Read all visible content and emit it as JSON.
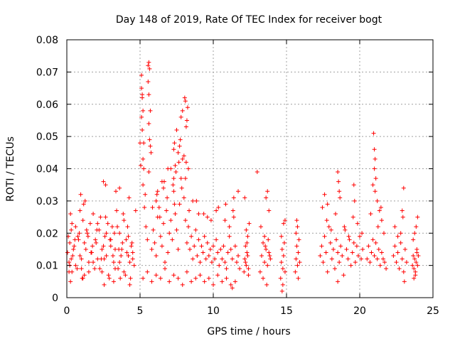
{
  "chart_data": {
    "type": "scatter",
    "title": "Day 148 of 2019, Rate Of TEC Index for receiver bogt",
    "xlabel": "GPS time / hours",
    "ylabel": "ROTI / TECUs",
    "xlim": [
      0,
      25
    ],
    "ylim": [
      0,
      0.08
    ],
    "x_ticks": [
      0,
      5,
      10,
      15,
      20,
      25
    ],
    "x_tick_labels": [
      "0",
      "5",
      "10",
      "15",
      "20",
      "25"
    ],
    "y_ticks": [
      0,
      0.01,
      0.02,
      0.03,
      0.04,
      0.05,
      0.06,
      0.07,
      0.08
    ],
    "y_tick_labels": [
      "0",
      "0.01",
      "0.02",
      "0.03",
      "0.04",
      "0.05",
      "0.06",
      "0.07",
      "0.08"
    ],
    "grid": true,
    "marker": "+",
    "marker_color": "#ff0000",
    "series": [
      {
        "name": "ROTI",
        "x": [
          0.05,
          0.1,
          0.15,
          0.2,
          0.25,
          0.3,
          0.35,
          0.4,
          0.5,
          0.6,
          0.7,
          0.8,
          0.9,
          1.0,
          1.1,
          1.2,
          1.3,
          1.4,
          1.5,
          1.6,
          1.7,
          1.8,
          1.9,
          2.0,
          2.1,
          2.2,
          2.3,
          2.4,
          2.5,
          2.6,
          2.7,
          2.8,
          2.9,
          3.0,
          3.1,
          3.2,
          3.3,
          3.4,
          3.5,
          3.6,
          3.7,
          3.8,
          3.9,
          4.0,
          4.1,
          4.2,
          4.3,
          4.4,
          4.5,
          4.6,
          0.15,
          0.3,
          0.45,
          0.6,
          0.75,
          0.9,
          1.05,
          1.2,
          1.35,
          1.5,
          1.65,
          1.8,
          1.95,
          2.1,
          2.25,
          2.4,
          2.55,
          2.7,
          2.85,
          3.0,
          3.15,
          3.3,
          3.45,
          3.6,
          3.75,
          3.9,
          4.05,
          4.2,
          4.35,
          4.5,
          0.2,
          0.35,
          0.55,
          0.85,
          1.0,
          1.15,
          1.45,
          1.75,
          2.05,
          2.35,
          2.65,
          2.95,
          3.25,
          3.55,
          3.85,
          4.15,
          4.45,
          0.95,
          1.25,
          2.5,
          2.65,
          3.35,
          3.6,
          4.25,
          0.25,
          1.1,
          2.55,
          3.2,
          3.65,
          4.3,
          4.7,
          5.0,
          5.05,
          5.1,
          5.15,
          5.2,
          5.25,
          5.3,
          5.4,
          5.5,
          5.55,
          5.6,
          5.65,
          5.7,
          5.8,
          5.9,
          6.0,
          6.1,
          6.2,
          6.3,
          6.4,
          6.5,
          6.6,
          6.7,
          6.8,
          6.9,
          7.0,
          7.1,
          7.2,
          7.3,
          7.4,
          7.5,
          7.6,
          7.7,
          7.8,
          7.9,
          8.0,
          8.1,
          8.2,
          8.3,
          8.4,
          8.5,
          8.6,
          8.7,
          8.8,
          8.9,
          9.0,
          9.1,
          9.2,
          9.3,
          9.4,
          9.5,
          9.6,
          9.7,
          9.8,
          9.9,
          10.0,
          10.1,
          10.2,
          10.3,
          10.4,
          10.5,
          10.6,
          10.7,
          10.8,
          10.9,
          11.0,
          11.1,
          11.2,
          11.3,
          11.4,
          11.5,
          11.6,
          11.7,
          11.8,
          5.1,
          5.15,
          5.1,
          5.2,
          5.15,
          5.25,
          5.2,
          5.6,
          5.65,
          5.55,
          5.7,
          5.6,
          5.75,
          5.6,
          6.2,
          6.5,
          6.9,
          7.3,
          7.35,
          7.5,
          7.6,
          7.65,
          7.8,
          7.9,
          8.0,
          8.05,
          8.1,
          8.15,
          8.2,
          8.25,
          8.1,
          8.15,
          7.4,
          7.45,
          7.25,
          7.3,
          7.7,
          7.75,
          8.3,
          6.1,
          6.15,
          6.6,
          6.65,
          7.1,
          5.2,
          5.5,
          5.8,
          6.1,
          6.4,
          6.7,
          7.0,
          7.3,
          7.6,
          7.9,
          8.2,
          8.5,
          8.8,
          9.1,
          9.4,
          9.7,
          10.0,
          10.3,
          10.6,
          10.9,
          11.2,
          11.5,
          5.35,
          5.85,
          6.35,
          6.85,
          7.35,
          7.85,
          8.35,
          8.85,
          9.35,
          9.85,
          10.35,
          10.85,
          11.35,
          11.7,
          8.6,
          9.0,
          9.6,
          10.2,
          10.8,
          11.1,
          11.3,
          11.4,
          12.1,
          12.15,
          12.2,
          12.25,
          12.3,
          12.35,
          12.4,
          12.45,
          12.2,
          12.3,
          12.25,
          12.35,
          12.4,
          12.15,
          13.2,
          13.3,
          13.4,
          13.5,
          13.6,
          13.7,
          13.8,
          13.9,
          13.4,
          13.5,
          13.6,
          13.7,
          13.8,
          13.75,
          13.65,
          13.0,
          13.25,
          13.55,
          13.85,
          14.6,
          14.65,
          14.7,
          14.75,
          14.8,
          14.85,
          14.9,
          14.7,
          14.75,
          14.8,
          14.65,
          14.9,
          15.6,
          15.65,
          15.7,
          15.75,
          15.8,
          15.85,
          15.7,
          15.75,
          15.8,
          15.65,
          15.9,
          17.3,
          17.4,
          17.5,
          17.6,
          17.7,
          17.8,
          17.9,
          18.0,
          18.1,
          18.2,
          18.3,
          18.4,
          18.5,
          18.6,
          18.7,
          18.8,
          18.9,
          19.0,
          19.1,
          19.2,
          19.3,
          19.4,
          19.5,
          19.6,
          19.7,
          19.8,
          19.9,
          20.0,
          20.1,
          20.2,
          17.45,
          17.75,
          18.05,
          18.35,
          18.65,
          18.95,
          19.25,
          19.55,
          19.85,
          20.15,
          18.5,
          18.55,
          18.6,
          18.5,
          19.6,
          19.65,
          17.6,
          17.8,
          20.5,
          20.6,
          20.7,
          20.8,
          20.9,
          21.0,
          21.1,
          21.2,
          21.3,
          21.4,
          21.5,
          21.6,
          21.7,
          21.8,
          20.95,
          21.0,
          21.05,
          21.0,
          21.1,
          20.9,
          21.05,
          21.2,
          21.35,
          21.5,
          21.65,
          20.75,
          21.25,
          21.45,
          22.3,
          22.4,
          22.5,
          22.6,
          22.7,
          22.8,
          22.9,
          23.0,
          23.1,
          23.2,
          22.4,
          22.6,
          22.8,
          23.0,
          22.9,
          23.05,
          22.95,
          23.6,
          23.65,
          23.7,
          23.75,
          23.8,
          23.85,
          23.9,
          23.95,
          24.0,
          23.7,
          23.8,
          23.9,
          23.75,
          23.85,
          23.65,
          23.95
        ],
        "y": [
          0.014,
          0.019,
          0.011,
          0.017,
          0.026,
          0.021,
          0.008,
          0.013,
          0.016,
          0.022,
          0.009,
          0.018,
          0.027,
          0.012,
          0.024,
          0.007,
          0.015,
          0.02,
          0.011,
          0.023,
          0.014,
          0.026,
          0.009,
          0.017,
          0.012,
          0.021,
          0.025,
          0.008,
          0.016,
          0.019,
          0.013,
          0.023,
          0.006,
          0.018,
          0.022,
          0.011,
          0.015,
          0.027,
          0.009,
          0.02,
          0.013,
          0.017,
          0.024,
          0.007,
          0.014,
          0.019,
          0.011,
          0.016,
          0.012,
          0.01,
          0.008,
          0.012,
          0.015,
          0.01,
          0.019,
          0.013,
          0.006,
          0.017,
          0.021,
          0.008,
          0.014,
          0.011,
          0.018,
          0.023,
          0.009,
          0.015,
          0.012,
          0.02,
          0.007,
          0.016,
          0.013,
          0.009,
          0.022,
          0.011,
          0.015,
          0.008,
          0.018,
          0.013,
          0.006,
          0.014,
          0.01,
          0.023,
          0.018,
          0.02,
          0.009,
          0.029,
          0.019,
          0.016,
          0.021,
          0.012,
          0.025,
          0.018,
          0.02,
          0.015,
          0.026,
          0.022,
          0.017,
          0.032,
          0.03,
          0.036,
          0.035,
          0.033,
          0.034,
          0.031,
          0.005,
          0.006,
          0.004,
          0.005,
          0.006,
          0.004,
          0.027,
          0.048,
          0.041,
          0.069,
          0.062,
          0.035,
          0.048,
          0.028,
          0.022,
          0.018,
          0.072,
          0.063,
          0.049,
          0.058,
          0.015,
          0.021,
          0.017,
          0.013,
          0.025,
          0.028,
          0.019,
          0.016,
          0.023,
          0.011,
          0.027,
          0.014,
          0.02,
          0.024,
          0.018,
          0.033,
          0.026,
          0.021,
          0.015,
          0.029,
          0.037,
          0.043,
          0.031,
          0.024,
          0.017,
          0.022,
          0.015,
          0.019,
          0.012,
          0.016,
          0.021,
          0.013,
          0.018,
          0.011,
          0.016,
          0.014,
          0.019,
          0.012,
          0.017,
          0.013,
          0.015,
          0.011,
          0.016,
          0.012,
          0.018,
          0.014,
          0.01,
          0.015,
          0.012,
          0.016,
          0.011,
          0.009,
          0.014,
          0.019,
          0.015,
          0.012,
          0.025,
          0.016,
          0.011,
          0.013,
          0.009,
          0.065,
          0.063,
          0.056,
          0.043,
          0.052,
          0.04,
          0.058,
          0.073,
          0.071,
          0.067,
          0.047,
          0.054,
          0.045,
          0.039,
          0.033,
          0.036,
          0.04,
          0.046,
          0.048,
          0.052,
          0.045,
          0.042,
          0.056,
          0.058,
          0.044,
          0.062,
          0.061,
          0.053,
          0.055,
          0.059,
          0.037,
          0.042,
          0.041,
          0.039,
          0.035,
          0.037,
          0.047,
          0.049,
          0.04,
          0.03,
          0.032,
          0.034,
          0.036,
          0.04,
          0.006,
          0.008,
          0.005,
          0.007,
          0.006,
          0.009,
          0.005,
          0.007,
          0.006,
          0.004,
          0.008,
          0.005,
          0.006,
          0.007,
          0.005,
          0.006,
          0.004,
          0.007,
          0.005,
          0.006,
          0.004,
          0.005,
          0.032,
          0.028,
          0.025,
          0.031,
          0.029,
          0.034,
          0.027,
          0.03,
          0.026,
          0.024,
          0.028,
          0.029,
          0.027,
          0.033,
          0.03,
          0.026,
          0.025,
          0.027,
          0.024,
          0.022,
          0.003,
          0.031,
          0.008,
          0.012,
          0.016,
          0.01,
          0.014,
          0.019,
          0.007,
          0.023,
          0.011,
          0.017,
          0.021,
          0.013,
          0.009,
          0.031,
          0.008,
          0.013,
          0.017,
          0.011,
          0.015,
          0.01,
          0.014,
          0.012,
          0.006,
          0.019,
          0.031,
          0.033,
          0.027,
          0.018,
          0.004,
          0.039,
          0.022,
          0.016,
          0.013,
          0.006,
          0.011,
          0.015,
          0.009,
          0.013,
          0.017,
          0.008,
          0.002,
          0.004,
          0.023,
          0.019,
          0.024,
          0.008,
          0.012,
          0.016,
          0.01,
          0.014,
          0.018,
          0.024,
          0.022,
          0.006,
          0.02,
          0.011,
          0.013,
          0.016,
          0.011,
          0.019,
          0.014,
          0.008,
          0.022,
          0.017,
          0.012,
          0.015,
          0.009,
          0.018,
          0.014,
          0.011,
          0.016,
          0.013,
          0.007,
          0.021,
          0.015,
          0.012,
          0.018,
          0.01,
          0.014,
          0.017,
          0.011,
          0.016,
          0.013,
          0.019,
          0.012,
          0.015,
          0.028,
          0.024,
          0.021,
          0.026,
          0.031,
          0.022,
          0.019,
          0.025,
          0.023,
          0.02,
          0.039,
          0.036,
          0.033,
          0.005,
          0.035,
          0.03,
          0.032,
          0.029,
          0.012,
          0.016,
          0.011,
          0.014,
          0.018,
          0.013,
          0.017,
          0.012,
          0.015,
          0.01,
          0.014,
          0.012,
          0.011,
          0.009,
          0.051,
          0.046,
          0.043,
          0.04,
          0.037,
          0.035,
          0.033,
          0.03,
          0.027,
          0.024,
          0.02,
          0.026,
          0.022,
          0.028,
          0.013,
          0.016,
          0.011,
          0.014,
          0.009,
          0.017,
          0.012,
          0.008,
          0.015,
          0.011,
          0.022,
          0.019,
          0.02,
          0.034,
          0.027,
          0.005,
          0.025,
          0.01,
          0.013,
          0.009,
          0.012,
          0.008,
          0.011,
          0.014,
          0.01,
          0.013,
          0.006,
          0.007,
          0.015,
          0.02,
          0.022,
          0.018,
          0.025
        ]
      }
    ]
  }
}
